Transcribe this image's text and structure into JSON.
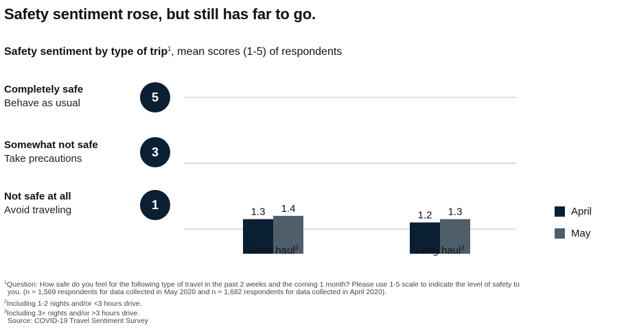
{
  "headline": "Safety sentiment rose, but still has far to go.",
  "subtitle": {
    "bold": "Safety sentiment by type of trip",
    "sup": "1",
    "rest": ", mean scores (1-5) of respondents"
  },
  "levels": [
    {
      "badge": "5",
      "label": "Completely safe",
      "desc": "Behave as usual"
    },
    {
      "badge": "3",
      "label": "Somewhat not safe",
      "desc": "Take precautions"
    },
    {
      "badge": "1",
      "label": "Not safe at all",
      "desc": "Avoid traveling"
    }
  ],
  "legend": [
    {
      "label": "April",
      "color": "#0b1f33"
    },
    {
      "label": "May",
      "color": "#4f5e6b"
    }
  ],
  "chart_data": {
    "type": "bar",
    "categories": [
      "Short haul",
      "Long haul"
    ],
    "category_sups": [
      "2",
      "3"
    ],
    "series": [
      {
        "name": "April",
        "values": [
          1.3,
          1.2
        ],
        "color": "#0b1f33"
      },
      {
        "name": "May",
        "values": [
          1.4,
          1.3
        ],
        "color": "#4f5e6b"
      }
    ],
    "gridlines": [
      5,
      3,
      1
    ],
    "ylim": [
      0.25,
      5
    ],
    "grid": true,
    "legend_position": "right"
  },
  "footnotes": {
    "f1_sup": "1",
    "f1_line1": "Question: How safe do you feel for the following type of travel in the past 2 weeks and the coming 1 month? Please use 1-5 scale to indicate the level of safety to",
    "f1_line2": "you. (n = 1,569 respondents for data collected in May 2020 and n = 1,682 respondents for data collected in April 2020).",
    "f2_sup": "2",
    "f2": "Including 1-2 nights and/or <3 hours drive.",
    "f3_sup": "3",
    "f3": "Including 3+ nights and/or >3 hours drive.",
    "source": "Source: COVID-19 Travel Sentiment Survey"
  }
}
